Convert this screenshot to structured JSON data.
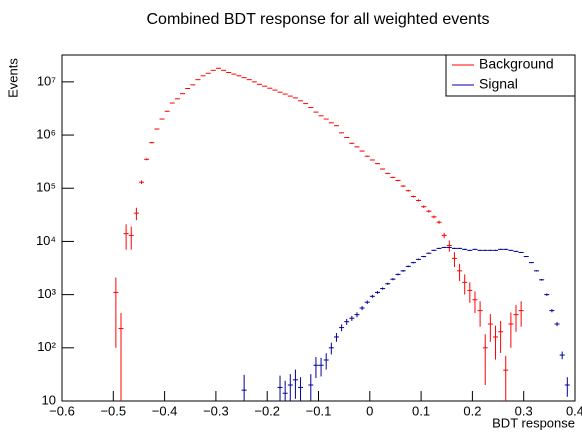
{
  "chart_data": {
    "type": "errorbar",
    "title": "Combined BDT response for all weighted events",
    "x_label": "BDT response",
    "y_label": "Events",
    "xlim": [
      -0.6,
      0.4
    ],
    "ylim": [
      10,
      32000000
    ],
    "log_y": true,
    "legend_position": "top-right",
    "xticks": [
      {
        "value": -0.6,
        "label": "−0.6"
      },
      {
        "value": -0.5,
        "label": "−0.5"
      },
      {
        "value": -0.4,
        "label": "−0.4"
      },
      {
        "value": -0.3,
        "label": "−0.3"
      },
      {
        "value": -0.2,
        "label": "−0.2"
      },
      {
        "value": -0.1,
        "label": "−0.1"
      },
      0,
      0.1,
      0.2,
      0.3,
      0.4
    ],
    "yticks": [
      {
        "value": 10,
        "label": "10"
      },
      {
        "value": 100,
        "label": "10²"
      },
      {
        "value": 1000,
        "label": "10³"
      },
      {
        "value": 10000,
        "label": "10⁴"
      },
      {
        "value": 100000,
        "label": "10⁵"
      },
      {
        "value": 1000000,
        "label": "10⁶"
      },
      {
        "value": 10000000,
        "label": "10⁷"
      }
    ],
    "series": [
      {
        "name": "Background",
        "color": "#ff0000",
        "x": [
          -0.495,
          -0.485,
          -0.475,
          -0.465,
          -0.455,
          -0.445,
          -0.435,
          -0.425,
          -0.415,
          -0.405,
          -0.395,
          -0.385,
          -0.375,
          -0.365,
          -0.355,
          -0.345,
          -0.335,
          -0.325,
          -0.315,
          -0.305,
          -0.295,
          -0.285,
          -0.275,
          -0.265,
          -0.255,
          -0.245,
          -0.235,
          -0.225,
          -0.215,
          -0.205,
          -0.195,
          -0.185,
          -0.175,
          -0.165,
          -0.155,
          -0.145,
          -0.135,
          -0.125,
          -0.115,
          -0.105,
          -0.095,
          -0.085,
          -0.075,
          -0.065,
          -0.055,
          -0.045,
          -0.035,
          -0.025,
          -0.015,
          -0.005,
          0.005,
          0.015,
          0.025,
          0.035,
          0.045,
          0.055,
          0.065,
          0.075,
          0.085,
          0.095,
          0.105,
          0.115,
          0.125,
          0.135,
          0.145,
          0.155,
          0.165,
          0.175,
          0.185,
          0.195,
          0.205,
          0.215,
          0.225,
          0.235,
          0.245,
          0.255,
          0.265,
          0.275,
          0.285,
          0.295
        ],
        "values": [
          1100,
          230,
          14000,
          13000,
          34000,
          130000,
          350000,
          720000,
          1300000,
          2000000,
          2800000,
          4000000,
          4800000,
          6000000,
          7500000,
          8800000,
          11000000,
          13000000,
          14500000,
          16500000,
          18000000,
          16500000,
          15000000,
          14000000,
          13000000,
          12000000,
          11000000,
          10000000,
          9000000,
          8300000,
          7600000,
          7000000,
          6400000,
          5900000,
          5400000,
          5000000,
          4400000,
          3900000,
          3300000,
          2700000,
          2300000,
          2000000,
          1700000,
          1500000,
          1100000,
          900000,
          700000,
          600000,
          500000,
          400000,
          340000,
          290000,
          230000,
          190000,
          160000,
          140000,
          110000,
          90000,
          70000,
          59000,
          45000,
          37000,
          29000,
          23000,
          13000,
          8400,
          4800,
          2800,
          1700,
          1200,
          800,
          500,
          100,
          280,
          160,
          200,
          38,
          280,
          420,
          500
        ],
        "errors": [
          1000,
          220,
          7000,
          6000,
          9000,
          10000,
          15000,
          20000,
          30000,
          40000,
          50000,
          60000,
          70000,
          80000,
          90000,
          100000,
          120000,
          140000,
          150000,
          160000,
          170000,
          160000,
          150000,
          140000,
          130000,
          120000,
          110000,
          100000,
          95000,
          90000,
          85000,
          80000,
          75000,
          70000,
          65000,
          60000,
          55000,
          50000,
          45000,
          40000,
          35000,
          32000,
          28000,
          25000,
          20000,
          17000,
          14000,
          12000,
          10000,
          9000,
          8000,
          7000,
          6000,
          5500,
          5000,
          4500,
          4000,
          3500,
          3000,
          2700,
          2400,
          2100,
          1800,
          1600,
          1500,
          2000,
          1500,
          1000,
          700,
          500,
          350,
          250,
          80,
          150,
          100,
          120,
          33,
          180,
          220,
          250
        ]
      },
      {
        "name": "Signal",
        "color": "#000099",
        "x": [
          -0.245,
          -0.175,
          -0.165,
          -0.155,
          -0.145,
          -0.135,
          -0.115,
          -0.105,
          -0.095,
          -0.085,
          -0.075,
          -0.065,
          -0.055,
          -0.045,
          -0.035,
          -0.025,
          -0.015,
          -0.005,
          0.005,
          0.015,
          0.025,
          0.035,
          0.045,
          0.055,
          0.065,
          0.075,
          0.085,
          0.095,
          0.105,
          0.115,
          0.125,
          0.135,
          0.145,
          0.155,
          0.165,
          0.175,
          0.185,
          0.195,
          0.205,
          0.215,
          0.225,
          0.235,
          0.245,
          0.255,
          0.265,
          0.275,
          0.285,
          0.295,
          0.305,
          0.315,
          0.325,
          0.335,
          0.345,
          0.355,
          0.365,
          0.375,
          0.385
        ],
        "values": [
          16,
          18,
          14,
          20,
          25,
          18,
          20,
          47,
          47,
          59,
          100,
          160,
          240,
          310,
          360,
          420,
          560,
          720,
          930,
          1100,
          1300,
          1600,
          1950,
          2400,
          2800,
          3400,
          4000,
          4600,
          5200,
          6000,
          6800,
          7400,
          7700,
          7700,
          7400,
          7400,
          7100,
          6800,
          7100,
          6800,
          6800,
          6800,
          6800,
          7100,
          7100,
          6800,
          6500,
          6200,
          5200,
          4000,
          2800,
          1900,
          1000,
          500,
          280,
          73,
          20
        ],
        "errors": [
          15,
          12,
          10,
          12,
          14,
          10,
          12,
          20,
          18,
          20,
          25,
          30,
          35,
          40,
          40,
          45,
          50,
          55,
          60,
          65,
          70,
          80,
          90,
          100,
          110,
          120,
          130,
          140,
          150,
          160,
          170,
          180,
          190,
          190,
          180,
          180,
          170,
          160,
          170,
          160,
          160,
          160,
          160,
          170,
          170,
          160,
          150,
          140,
          120,
          100,
          80,
          70,
          50,
          35,
          25,
          12,
          8
        ]
      }
    ]
  }
}
